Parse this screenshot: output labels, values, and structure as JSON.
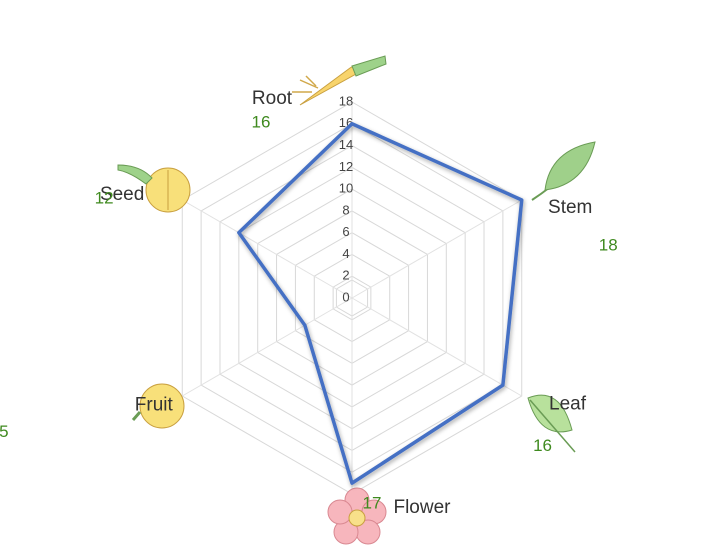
{
  "chart_data": {
    "type": "radar",
    "categories": [
      "Root",
      "Stem",
      "Leaf",
      "Flower",
      "Fruit",
      "Seed"
    ],
    "series": [
      {
        "color": "#4470c4",
        "values": [
          16,
          18,
          16,
          17,
          5,
          12
        ]
      }
    ],
    "ylim": [
      0,
      18
    ],
    "yticks": [
      0,
      2,
      4,
      6,
      8,
      10,
      12,
      14,
      16,
      18
    ],
    "grid": true
  }
}
